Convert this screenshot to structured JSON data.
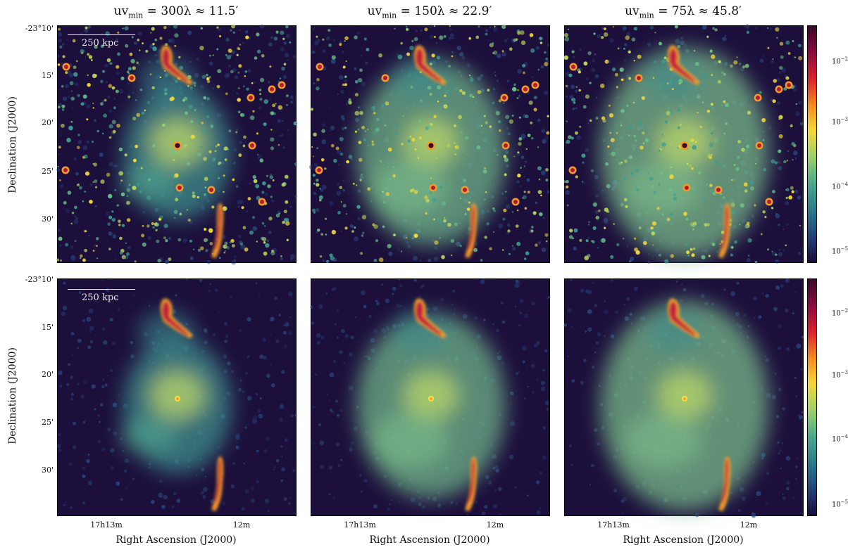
{
  "columns": [
    {
      "title_prefix": "uv",
      "title_sub": "min",
      "title_rest": " = 300λ ≈ 11.5′"
    },
    {
      "title_prefix": "uv",
      "title_sub": "min",
      "title_rest": " = 150λ ≈ 22.9′"
    },
    {
      "title_prefix": "uv",
      "title_sub": "min",
      "title_rest": " = 75λ ≈ 45.8′"
    }
  ],
  "axes": {
    "ylabel": "Declination (J2000)",
    "xlabel": "Right Ascension (J2000)",
    "dec_ticks": [
      "-23°10'",
      "15'",
      "20'",
      "25'",
      "30'"
    ],
    "ra_ticks": [
      "17h13m",
      "12m"
    ]
  },
  "scalebar": {
    "label": "250 kpc"
  },
  "colorbar": {
    "ticks": [
      {
        "base": "10",
        "exp": "−2"
      },
      {
        "base": "10",
        "exp": "−3"
      },
      {
        "base": "10",
        "exp": "−4"
      },
      {
        "base": "10",
        "exp": "−5"
      }
    ],
    "colors": [
      "#1a0d3a",
      "#22437a",
      "#2a7a8c",
      "#4aa88c",
      "#9ccf6a",
      "#f2d83a",
      "#f58a1e",
      "#d8212e",
      "#8a0b3e",
      "#3a0a2a"
    ]
  }
}
